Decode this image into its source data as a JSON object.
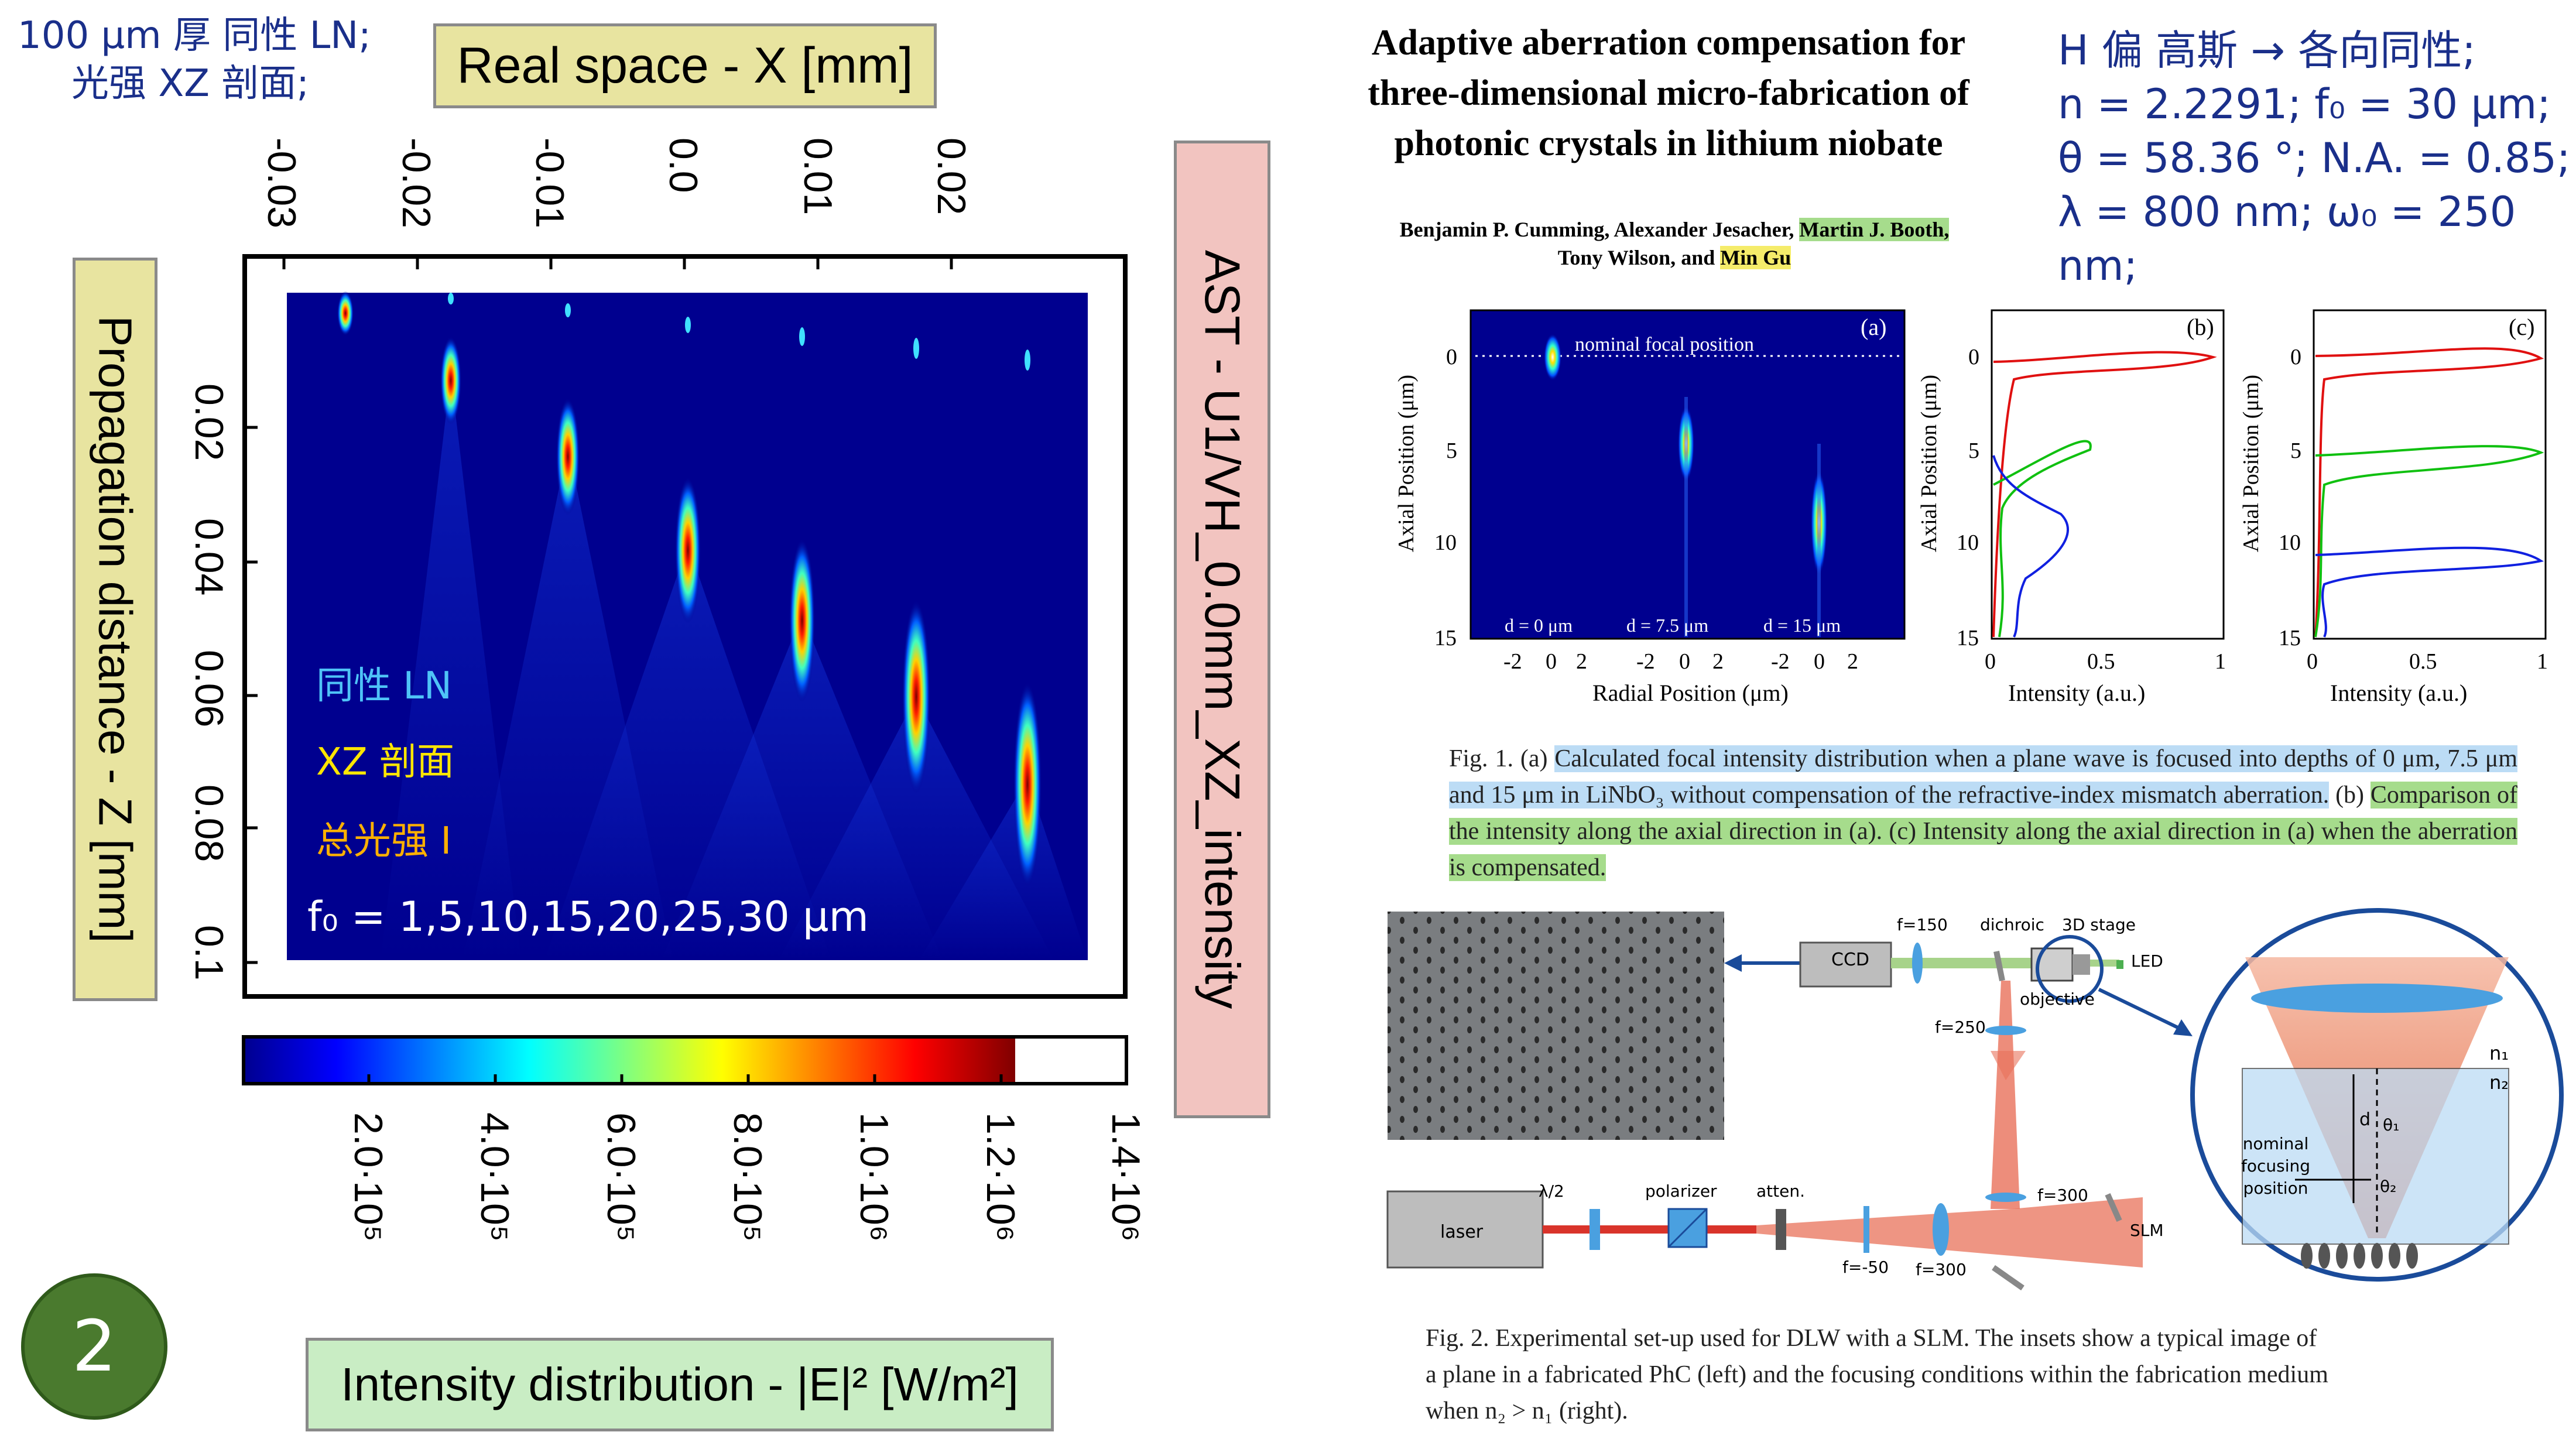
{
  "notes": {
    "topleft_line1": "100 µm 厚 同性 LN;",
    "topleft_line2": "光强 XZ 剖面;",
    "topright_line1": "H 偏 高斯 → 各向同性;",
    "topright_line2": "n = 2.2291; f₀ = 30 µm;",
    "topright_line3": "θ = 58.36 °; N.A. = 0.85;",
    "topright_line4": "λ = 800 nm; ω₀ = 250 nm;"
  },
  "left_plot": {
    "x_title": "Real space - X [mm]",
    "y_title": "Propagation distance - Z [mm]",
    "side_title": "AST - U1/VH_0.0mm_XZ_intensity",
    "colorbar_title": "Intensity distribution - |E|² [W/m²]",
    "x_ticks": [
      "-0.03",
      "-0.02",
      "-0.01",
      "0.0",
      "0.01",
      "0.02"
    ],
    "y_ticks": [
      "0.02",
      "0.04",
      "0.06",
      "0.08",
      "0.1"
    ],
    "colorbar_ticks": [
      "2.0·10⁵",
      "4.0·10⁵",
      "6.0·10⁵",
      "8.0·10⁵",
      "1.0·10⁶",
      "1.2·10⁶",
      "1.4·10⁶"
    ],
    "overlay_line1": "同性 LN",
    "overlay_line2": "XZ 剖面",
    "overlay_line3": "总光强 I",
    "overlay_line4": "f₀ = 1,5,10,15,20,25,30 µm",
    "badge": "2",
    "colors": {
      "background": "#00008f",
      "label_yellow": "#e8e4a0",
      "label_pink": "#f2c4c0",
      "label_green": "#c9edc4",
      "badge": "#4a7a2e"
    }
  },
  "paper": {
    "title_line1": "Adaptive aberration compensation for",
    "title_line2": "three-dimensional micro-fabrication of",
    "title_line3": "photonic crystals in lithium niobate",
    "authors_line1_a": "Benjamin P. Cumming,",
    "authors_line1_b": " Alexander Jesacher,",
    "authors_line1_c": "Martin J. Booth,",
    "authors_line2_a": "Tony Wilson,",
    "authors_line2_b": " and ",
    "authors_line2_c": "Min Gu",
    "fig1": {
      "panel_a": "(a)",
      "panel_b": "(b)",
      "panel_c": "(c)",
      "nominal": "nominal focal position",
      "d0": "d = 0 μm",
      "d75": "d = 7.5 μm",
      "d15": "d = 15 μm",
      "ylabel": "Axial Position (μm)",
      "xlabel_a": "Radial Position (μm)",
      "xlabel_bc": "Intensity (a.u.)",
      "yticks": [
        "0",
        "5",
        "10",
        "15"
      ],
      "xticks_a": [
        "-2",
        "0",
        "2",
        "-2",
        "0",
        "2",
        "-2",
        "0",
        "2"
      ],
      "xticks_bc": [
        "0",
        "0.5",
        "1"
      ],
      "caption_a": "Fig. 1. (a) ",
      "caption_b": "Calculated focal intensity distribution when a plane wave is focused into depths of 0 μm, 7.5 μm and 15 μm in LiNbO₃ without compensation of the refractive-index mismatch aberration.",
      "caption_c": " (b) ",
      "caption_d": "Comparison of the intensity along the axial direction in (a). (c) Intensity along the axial direction in (a) when the aberration is compensated."
    },
    "fig2": {
      "labels": {
        "ccd": "CCD",
        "f150": "f=150",
        "dichroic": "dichroic",
        "stage": "3D stage",
        "led": "LED",
        "objective": "objective",
        "f250": "f=250",
        "f300a": "f=300",
        "slm": "SLM",
        "laser": "laser",
        "half": "λ/2",
        "polarizer": "polarizer",
        "atten": "atten.",
        "fm50": "f=-50",
        "f300b": "f=300",
        "n1": "n₁",
        "n2": "n₂",
        "d": "d",
        "theta1": "θ₁",
        "theta2": "θ₂",
        "nominal1": "nominal",
        "nominal2": "focusing",
        "nominal3": "position"
      },
      "caption_line1": "Fig. 2. Experimental set-up used for DLW with a SLM. The insets show a typical image of",
      "caption_line2": "a plane in a fabricated PhC (left) and the focusing conditions within the fabrication medium",
      "caption_line3": "when n₂ > n₁ (right)."
    }
  }
}
